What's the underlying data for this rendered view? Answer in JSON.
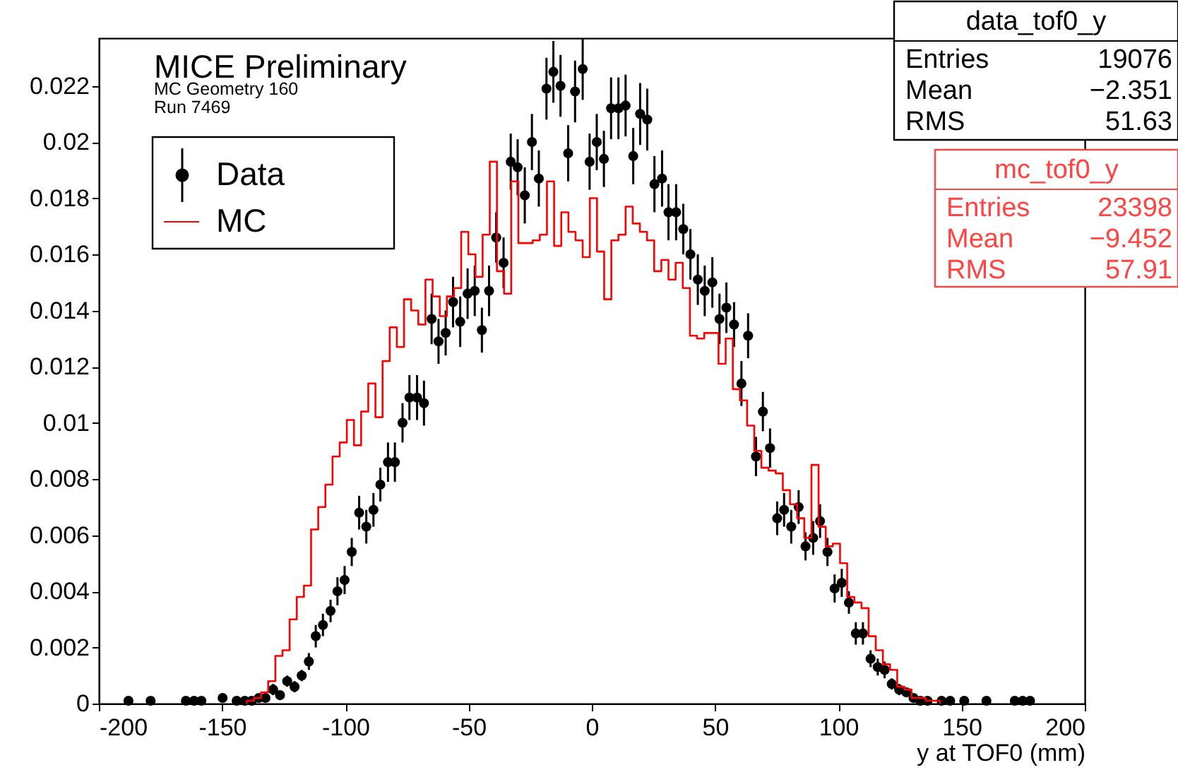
{
  "chart_data": {
    "type": "scatter",
    "xlabel": "y at TOF0 (mm)",
    "xlim": [
      -200,
      200
    ],
    "xticks": [
      -200,
      -150,
      -100,
      -50,
      0,
      50,
      100,
      150,
      200
    ],
    "ylim": [
      0,
      0.0237
    ],
    "yticks": [
      0,
      0.002,
      0.004,
      0.006,
      0.008,
      0.01,
      0.012,
      0.014,
      0.016,
      0.018,
      0.02,
      0.022
    ],
    "grid": false,
    "legend": "top left",
    "marker": "circle",
    "annotations": [
      "MICE Preliminary",
      "MC Geometry 160",
      "Run 7469",
      "data_tof0_y",
      "Entries 19076",
      "Mean −2.351",
      "RMS 51.63",
      "mc_tof0_y",
      "Entries 23398",
      "Mean −9.452",
      "RMS 57.91"
    ],
    "series": [
      {
        "name": "Data",
        "type": "scatter",
        "color": "#000000",
        "x": [
          -188,
          -179,
          -164.7,
          -161.4,
          -158.4,
          -149.8,
          -144.1,
          -140.8,
          -138,
          -135.1,
          -132.4,
          -129.3,
          -126.5,
          -123.6,
          -120.6,
          -117.7,
          -114.8,
          -112,
          -109.1,
          -106,
          -103.2,
          -100.3,
          -97.4,
          -94.4,
          -91.5,
          -88.6,
          -85.8,
          -82.7,
          -79.9,
          -76.8,
          -74,
          -70.9,
          -68.1,
          -65,
          -62.2,
          -59.3,
          -56.3,
          -53.4,
          -50.4,
          -47.5,
          -44.6,
          -41.7,
          -38.8,
          -35.8,
          -32.9,
          -30.1,
          -27.2,
          -24.3,
          -21.5,
          -18.4,
          -15.6,
          -12.7,
          -9.6,
          -6.8,
          -3.7,
          -0.9,
          2,
          4.9,
          7.8,
          10.8,
          13.7,
          16.8,
          19.6,
          22.5,
          25.4,
          28.5,
          31.1,
          34.2,
          37.1,
          40,
          43,
          45.8,
          48.9,
          51.8,
          54.6,
          57.7,
          60.7,
          63.4,
          66.6,
          69.4,
          72.3,
          75.2,
          78,
          80.9,
          83.9,
          86.7,
          89.8,
          92.6,
          95.6,
          98.5,
          101.4,
          104.3,
          107.1,
          110,
          113.1,
          116,
          118.8,
          121.7,
          124.7,
          127.6,
          130.5,
          133.3,
          136.2,
          141.9,
          145.4,
          151.1,
          160.1,
          171.6,
          174.8,
          177.8
        ],
        "values": [
          0.0001,
          0.0001,
          0.0001,
          0.0001,
          0.0001,
          0.0002,
          0.0001,
          0.0001,
          0.0001,
          0.0002,
          0.0002,
          0.0005,
          0.0003,
          0.0008,
          0.0006,
          0.001,
          0.0015,
          0.0024,
          0.0028,
          0.0033,
          0.004,
          0.0044,
          0.0054,
          0.0068,
          0.0063,
          0.0069,
          0.0078,
          0.0086,
          0.0086,
          0.01,
          0.0109,
          0.0109,
          0.0107,
          0.0137,
          0.0129,
          0.0132,
          0.0143,
          0.0136,
          0.0146,
          0.0147,
          0.0133,
          0.0147,
          0.0166,
          0.0157,
          0.0193,
          0.0191,
          0.0181,
          0.02,
          0.0187,
          0.0219,
          0.0225,
          0.022,
          0.0196,
          0.0218,
          0.0226,
          0.0193,
          0.02,
          0.0194,
          0.0212,
          0.0212,
          0.0213,
          0.0195,
          0.021,
          0.0208,
          0.0185,
          0.0187,
          0.0175,
          0.0175,
          0.0169,
          0.016,
          0.0151,
          0.0147,
          0.015,
          0.0137,
          0.0141,
          0.0135,
          0.0114,
          0.0131,
          0.0088,
          0.0104,
          0.0091,
          0.0066,
          0.0069,
          0.0063,
          0.007,
          0.0056,
          0.0059,
          0.0065,
          0.0054,
          0.0041,
          0.0043,
          0.0036,
          0.0025,
          0.0025,
          0.0016,
          0.0013,
          0.0012,
          0.0007,
          0.0005,
          0.0004,
          0.0002,
          0.0001,
          0.0001,
          0.0001,
          0.0001,
          0.0001,
          0.0001,
          0.0001,
          0.0001,
          0.0001
        ],
        "errors": [
          0.0001,
          0.0001,
          0.0001,
          0.0001,
          0.0001,
          0.0001,
          0.0001,
          0.0001,
          0.0001,
          0.0001,
          0.0001,
          0.0002,
          0.0001,
          0.0002,
          0.0002,
          0.0002,
          0.0003,
          0.0004,
          0.0004,
          0.0004,
          0.0005,
          0.0005,
          0.0005,
          0.0006,
          0.0006,
          0.0006,
          0.0006,
          0.0007,
          0.0007,
          0.0007,
          0.0008,
          0.0008,
          0.0008,
          0.0009,
          0.0008,
          0.0008,
          0.0009,
          0.0009,
          0.0009,
          0.0009,
          0.0008,
          0.0009,
          0.0009,
          0.0009,
          0.001,
          0.001,
          0.001,
          0.001,
          0.001,
          0.0011,
          0.0011,
          0.0011,
          0.001,
          0.0011,
          0.0011,
          0.001,
          0.001,
          0.001,
          0.0011,
          0.0011,
          0.0011,
          0.001,
          0.0011,
          0.0011,
          0.001,
          0.001,
          0.001,
          0.001,
          0.0009,
          0.0009,
          0.0009,
          0.0009,
          0.0009,
          0.0009,
          0.0009,
          0.0008,
          0.0008,
          0.0008,
          0.0007,
          0.0007,
          0.0007,
          0.0006,
          0.0006,
          0.0006,
          0.0006,
          0.0005,
          0.0006,
          0.0006,
          0.0005,
          0.0005,
          0.0005,
          0.0004,
          0.0004,
          0.0004,
          0.0003,
          0.0003,
          0.0003,
          0.0002,
          0.0002,
          0.0001,
          0.0001,
          0.0001,
          0.0001,
          0.0001,
          0.0001,
          0.0001,
          0.0001,
          0.0001,
          0.0001,
          0.0001
        ]
      },
      {
        "name": "MC",
        "type": "histogram",
        "color": "#ff0000",
        "bins": [
          -140.0,
          -137.1,
          -134.2,
          -131.3,
          -128.4,
          -125.5,
          -122.6,
          -119.7,
          -116.8,
          -113.9,
          -111.0,
          -108.1,
          -105.2,
          -102.3,
          -99.4,
          -96.5,
          -93.6,
          -90.7,
          -87.8,
          -84.9,
          -82.0,
          -79.1,
          -76.2,
          -73.3,
          -70.4,
          -67.5,
          -64.6,
          -61.7,
          -58.8,
          -55.9,
          -53.0,
          -50.1,
          -47.2,
          -44.3,
          -41.4,
          -38.5,
          -35.6,
          -32.7,
          -29.8,
          -26.9,
          -24.0,
          -21.1,
          -18.2,
          -15.3,
          -12.4,
          -9.5,
          -6.6,
          -3.7,
          -0.8,
          2.1,
          5.0,
          7.9,
          10.8,
          13.7,
          16.6,
          19.5,
          22.4,
          25.3,
          28.2,
          31.1,
          34.0,
          36.9,
          39.8,
          42.7,
          45.6,
          48.5,
          51.4,
          54.3,
          57.2,
          60.1,
          63.0,
          65.9,
          68.8,
          71.7,
          74.6,
          77.5,
          80.4,
          83.3,
          86.2,
          89.1,
          92.0,
          94.9,
          97.8,
          100.7,
          103.6,
          106.5,
          109.4,
          112.3,
          115.2,
          118.1,
          121.0,
          123.9,
          126.8,
          129.7,
          132.6,
          135.5,
          138.4,
          141.3
        ],
        "values": [
          0.0001,
          0.0002,
          0.0004,
          0.0008,
          0.0017,
          0.0019,
          0.003,
          0.0038,
          0.0042,
          0.0062,
          0.007,
          0.0078,
          0.0088,
          0.0093,
          0.0101,
          0.0092,
          0.0104,
          0.0114,
          0.0102,
          0.0122,
          0.0134,
          0.0127,
          0.0144,
          0.014,
          0.0135,
          0.0151,
          0.0145,
          0.0138,
          0.0145,
          0.0148,
          0.0168,
          0.016,
          0.0152,
          0.0167,
          0.0193,
          0.0154,
          0.0146,
          0.0186,
          0.0164,
          0.0164,
          0.0165,
          0.0167,
          0.0186,
          0.0163,
          0.0175,
          0.0168,
          0.0165,
          0.0159,
          0.018,
          0.0161,
          0.0144,
          0.0165,
          0.0167,
          0.0177,
          0.0171,
          0.0168,
          0.0165,
          0.0154,
          0.0158,
          0.0151,
          0.0157,
          0.0148,
          0.0131,
          0.013,
          0.0132,
          0.0132,
          0.0121,
          0.013,
          0.0112,
          0.0108,
          0.0099,
          0.009,
          0.0084,
          0.0083,
          0.0082,
          0.0076,
          0.0071,
          0.0066,
          0.0059,
          0.0085,
          0.0063,
          0.0056,
          0.0057,
          0.005,
          0.0038,
          0.0036,
          0.0034,
          0.0024,
          0.0019,
          0.0014,
          0.0012,
          0.0006,
          0.0005,
          0.0002,
          0.0002,
          0.0001,
          0.0001
        ]
      }
    ]
  }
}
